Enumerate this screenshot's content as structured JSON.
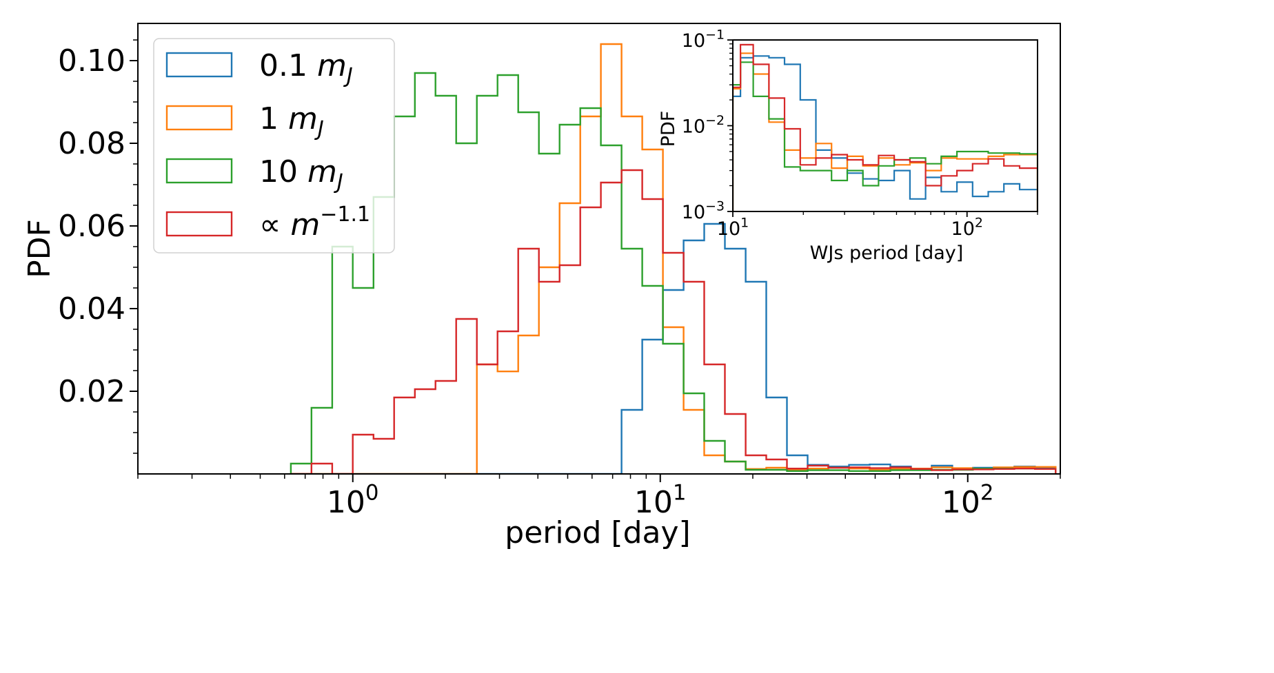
{
  "chart_data": [
    {
      "type": "step-histogram",
      "xscale": "log",
      "xlabel": "period [day]",
      "ylabel": "PDF",
      "xlim": [
        0.2,
        200
      ],
      "ylim": [
        0,
        0.109
      ],
      "yticks": [
        {
          "value": 0.02,
          "label": "0.02"
        },
        {
          "value": 0.04,
          "label": "0.04"
        },
        {
          "value": 0.06,
          "label": "0.06"
        },
        {
          "value": 0.08,
          "label": "0.08"
        },
        {
          "value": 0.1,
          "label": "0.10"
        }
      ],
      "xticks": [
        {
          "value": 1,
          "base": "10",
          "exp": "0"
        },
        {
          "value": 10,
          "base": "10",
          "exp": "1"
        },
        {
          "value": 100,
          "base": "10",
          "exp": "2"
        }
      ],
      "legend": {
        "placement": "upper-left",
        "entries": [
          {
            "prefix": "0.1",
            "symbol": "m",
            "sub": "J",
            "color": "#1f77b4"
          },
          {
            "prefix": "1",
            "symbol": "m",
            "sub": "J",
            "color": "#ff7f0e"
          },
          {
            "prefix": "10",
            "symbol": "m",
            "sub": "J",
            "color": "#2ca02c"
          },
          {
            "prefix": "∝",
            "symbol": "m",
            "sup": "−1.1",
            "color": "#d62728"
          }
        ]
      },
      "bin_edges": [
        0.629,
        0.734,
        0.857,
        1.0,
        1.168,
        1.363,
        1.592,
        1.858,
        2.169,
        2.532,
        2.956,
        3.451,
        4.029,
        4.704,
        5.492,
        6.411,
        7.485,
        8.738,
        10.2,
        11.91,
        13.9,
        16.23,
        18.95,
        22.12,
        25.83,
        30.15,
        35.2,
        41.09,
        47.97,
        56.01,
        65.38,
        76.33,
        89.11,
        104.0,
        121.4,
        141.8,
        165.5,
        193.2
      ],
      "series": [
        {
          "name": "0.1 mJ",
          "color": "#1f77b4",
          "values": [
            0,
            0,
            0,
            0,
            0,
            0,
            0,
            0,
            0,
            0,
            0,
            0,
            0,
            0,
            0,
            0,
            0.0155,
            0.0325,
            0.0445,
            0.0565,
            0.0605,
            0.0545,
            0.0465,
            0.0185,
            0.0045,
            0.0022,
            0.0018,
            0.0022,
            0.0023,
            0.0018,
            0.0012,
            0.002,
            0.0013,
            0.0015,
            0.0012,
            0.0018,
            0.0015
          ]
        },
        {
          "name": "1 mJ",
          "color": "#ff7f0e",
          "values": [
            0,
            0,
            0,
            0,
            0,
            0,
            0,
            0,
            0,
            0.0265,
            0.0248,
            0.0335,
            0.05,
            0.0655,
            0.0865,
            0.104,
            0.0865,
            0.0785,
            0.0355,
            0.0155,
            0.0045,
            0.003,
            0.0012,
            0.0015,
            0.001,
            0.0013,
            0.0015,
            0.0013,
            0.001,
            0.0012,
            0.0013,
            0.0016,
            0.0014,
            0.0013,
            0.0016,
            0.0017,
            0.0017
          ]
        },
        {
          "name": "10 mJ",
          "color": "#2ca02c",
          "values": [
            0.0025,
            0.016,
            0.055,
            0.045,
            0.067,
            0.0865,
            0.097,
            0.0915,
            0.08,
            0.0915,
            0.0965,
            0.0875,
            0.0775,
            0.0845,
            0.0885,
            0.0795,
            0.0545,
            0.0455,
            0.0315,
            0.0195,
            0.008,
            0.003,
            0.001,
            0.001,
            0.0007,
            0.0009,
            0.0009,
            0.0007,
            0.0007,
            0.0009,
            0.0009,
            0.001,
            0.001,
            0.0013,
            0.0013,
            0.0013,
            0.0012
          ]
        },
        {
          "name": "∝ m^-1.1",
          "color": "#d62728",
          "values": [
            0,
            0.0025,
            0,
            0.0095,
            0.0085,
            0.0185,
            0.0205,
            0.0225,
            0.0375,
            0.0265,
            0.0345,
            0.0545,
            0.0465,
            0.0505,
            0.0645,
            0.0705,
            0.0735,
            0.0665,
            0.0535,
            0.0465,
            0.0265,
            0.0145,
            0.0045,
            0.0035,
            0.0013,
            0.002,
            0.0015,
            0.0016,
            0.0014,
            0.0016,
            0.0012,
            0.0009,
            0.0011,
            0.0011,
            0.0012,
            0.0013,
            0.0012
          ]
        }
      ]
    },
    {
      "type": "step-histogram",
      "role": "inset",
      "xscale": "log",
      "yscale": "log",
      "xlabel": "WJs period [day]",
      "ylabel": "PDF",
      "xlim": [
        10,
        200
      ],
      "ylim": [
        0.001,
        0.1
      ],
      "yticks": [
        {
          "value": 0.1,
          "base": "10",
          "exp": "−1"
        },
        {
          "value": 0.01,
          "base": "10",
          "exp": "−2"
        },
        {
          "value": 0.001,
          "base": "10",
          "exp": "−3"
        }
      ],
      "xticks": [
        {
          "value": 10,
          "base": "10",
          "exp": "1"
        },
        {
          "value": 100,
          "base": "10",
          "exp": "2"
        }
      ],
      "bin_edges": [
        10.0,
        10.78,
        12.22,
        14.26,
        16.63,
        19.4,
        22.63,
        26.4,
        30.8,
        35.93,
        41.91,
        48.89,
        57.03,
        66.53,
        77.61,
        90.53,
        105.6,
        123.2,
        143.7,
        167.7,
        200.0
      ],
      "series": [
        {
          "name": "0.1 mJ",
          "color": "#1f77b4",
          "values": [
            0.022,
            0.062,
            0.065,
            0.062,
            0.052,
            0.02,
            0.0052,
            0.0042,
            0.0028,
            0.0024,
            0.0023,
            0.003,
            0.0014,
            0.0025,
            0.0017,
            0.0022,
            0.0015,
            0.0017,
            0.0021,
            0.0018
          ]
        },
        {
          "name": "1 mJ",
          "color": "#ff7f0e",
          "values": [
            0.027,
            0.07,
            0.04,
            0.011,
            0.0052,
            0.0042,
            0.0062,
            0.0032,
            0.0044,
            0.0034,
            0.0042,
            0.0035,
            0.0037,
            0.003,
            0.0042,
            0.0041,
            0.0041,
            0.0044,
            0.0046,
            0.0046
          ]
        },
        {
          "name": "10 mJ",
          "color": "#2ca02c",
          "values": [
            0.03,
            0.055,
            0.022,
            0.012,
            0.0033,
            0.003,
            0.003,
            0.0023,
            0.003,
            0.002,
            0.0034,
            0.004,
            0.0042,
            0.0036,
            0.0044,
            0.005,
            0.005,
            0.0048,
            0.0048,
            0.0047
          ]
        },
        {
          "name": "∝ m^-1.1",
          "color": "#d62728",
          "values": [
            0.028,
            0.088,
            0.052,
            0.021,
            0.0092,
            0.0035,
            0.0042,
            0.0046,
            0.004,
            0.0035,
            0.0045,
            0.004,
            0.0038,
            0.002,
            0.0026,
            0.003,
            0.0036,
            0.0041,
            0.0034,
            0.0032
          ]
        }
      ]
    }
  ]
}
